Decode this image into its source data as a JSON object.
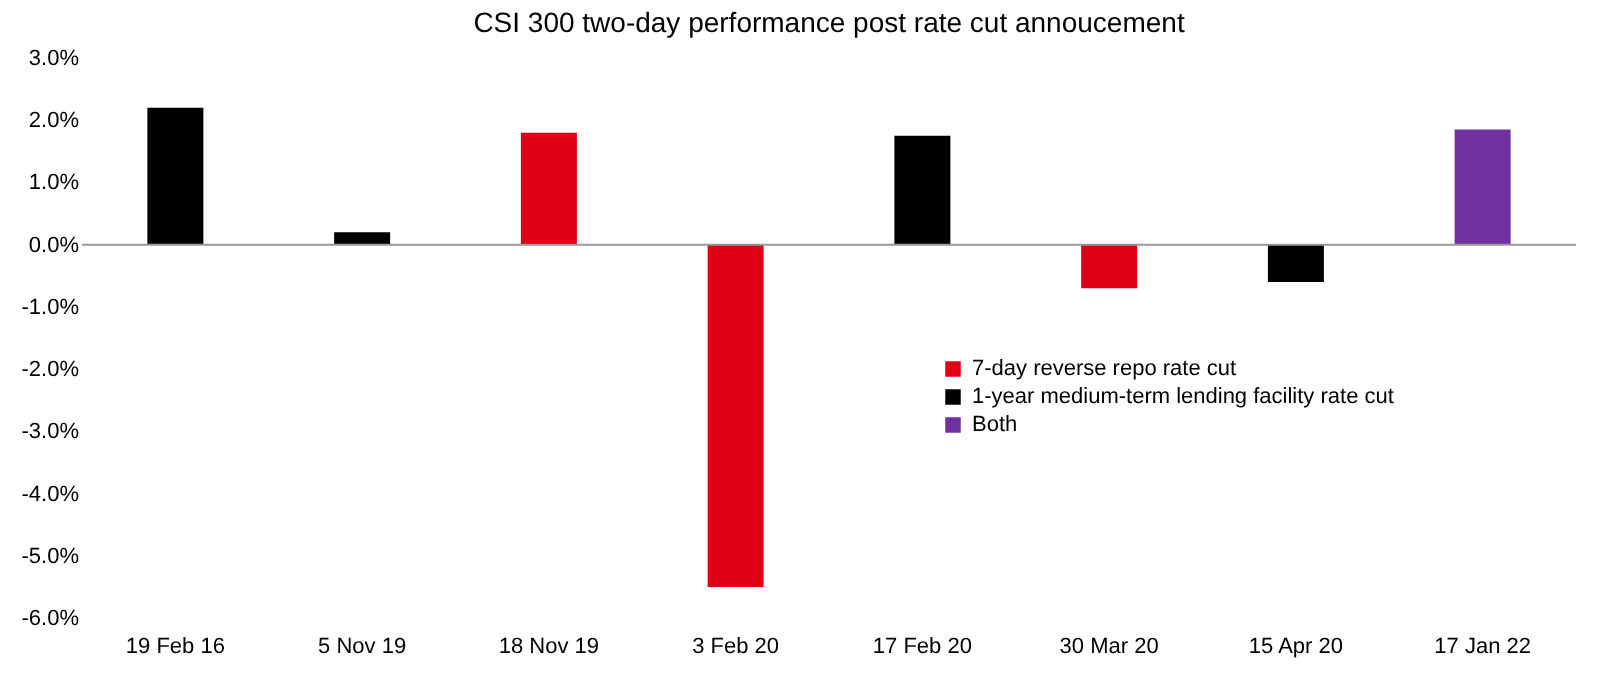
{
  "chart_data": {
    "type": "bar",
    "title": "CSI 300 two-day performance post rate cut annoucement",
    "categories": [
      "19 Feb 16",
      "5 Nov 19",
      "18 Nov 19",
      "3 Feb 20",
      "17 Feb 20",
      "30 Mar 20",
      "15 Apr 20",
      "17 Jan 22"
    ],
    "series": [
      {
        "name": "7-day reverse repo rate cut",
        "color": "#e00016",
        "values": [
          null,
          null,
          1.8,
          -5.5,
          null,
          -0.7,
          null,
          null
        ]
      },
      {
        "name": "1-year medium-term lending facility rate cut",
        "color": "#000000",
        "values": [
          2.2,
          0.2,
          null,
          null,
          1.75,
          null,
          -0.6,
          null
        ]
      },
      {
        "name": "Both",
        "color": "#7030a0",
        "values": [
          null,
          null,
          null,
          null,
          null,
          null,
          null,
          1.85
        ]
      }
    ],
    "ylim": [
      -6.0,
      3.0
    ],
    "yticks": [
      {
        "value": -6,
        "label": "-6.0%"
      },
      {
        "value": -5,
        "label": "-5.0%"
      },
      {
        "value": -4,
        "label": "-4.0%"
      },
      {
        "value": -3,
        "label": "-3.0%"
      },
      {
        "value": -2,
        "label": "-2.0%"
      },
      {
        "value": -1,
        "label": "-1.0%"
      },
      {
        "value": 0,
        "label": "0.0%"
      },
      {
        "value": 1,
        "label": "1.0%"
      },
      {
        "value": 2,
        "label": "2.0%"
      },
      {
        "value": 3,
        "label": "3.0%"
      }
    ],
    "ref_lines": [
      {
        "axis": "y",
        "value": 0,
        "color": "#999999"
      }
    ],
    "grid": false,
    "legend": "right"
  }
}
